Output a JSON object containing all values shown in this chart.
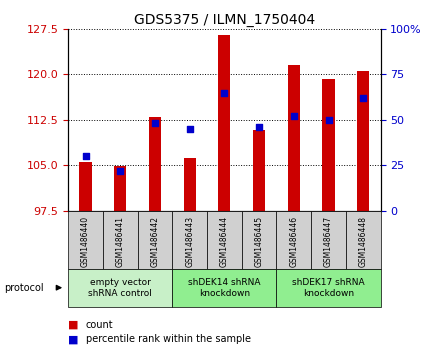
{
  "title": "GDS5375 / ILMN_1750404",
  "samples": [
    "GSM1486440",
    "GSM1486441",
    "GSM1486442",
    "GSM1486443",
    "GSM1486444",
    "GSM1486445",
    "GSM1486446",
    "GSM1486447",
    "GSM1486448"
  ],
  "counts": [
    105.5,
    104.8,
    113.0,
    106.2,
    126.5,
    110.8,
    121.5,
    119.2,
    120.5
  ],
  "percentiles": [
    30,
    22,
    48,
    45,
    65,
    46,
    52,
    50,
    62
  ],
  "ylim_left": [
    97.5,
    127.5
  ],
  "ylim_right": [
    0,
    100
  ],
  "yticks_left": [
    97.5,
    105.0,
    112.5,
    120.0,
    127.5
  ],
  "yticks_right": [
    0,
    25,
    50,
    75,
    100
  ],
  "groups": [
    {
      "label": "empty vector\nshRNA control",
      "start": 0,
      "end": 3,
      "color": "#c8f0c8"
    },
    {
      "label": "shDEK14 shRNA\nknockdown",
      "start": 3,
      "end": 6,
      "color": "#90ee90"
    },
    {
      "label": "shDEK17 shRNA\nknockdown",
      "start": 6,
      "end": 9,
      "color": "#90ee90"
    }
  ],
  "bar_color": "#cc0000",
  "dot_color": "#0000cc",
  "bar_width": 0.35,
  "dot_size": 18,
  "bg_color": "#ffffff",
  "tick_label_color_left": "#cc0000",
  "tick_label_color_right": "#0000cc",
  "title_fontsize": 10,
  "tick_fontsize": 8,
  "sample_fontsize": 5.5,
  "group_fontsize": 6.5,
  "legend_fontsize": 7
}
